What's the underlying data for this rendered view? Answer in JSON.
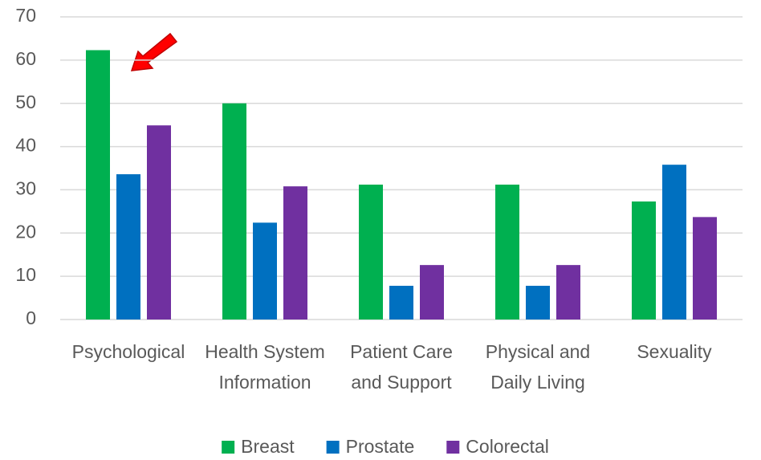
{
  "chart_data": {
    "type": "bar",
    "categories": [
      "Psychological",
      "Health System Information",
      "Patient Care and Support",
      "Physical and Daily Living",
      "Sexuality"
    ],
    "series": [
      {
        "name": "Breast",
        "color": "#00b050",
        "values": [
          62.3,
          50,
          31.2,
          31.2,
          27.3
        ]
      },
      {
        "name": "Prostate",
        "color": "#0070c0",
        "values": [
          33.6,
          22.4,
          7.8,
          7.8,
          35.8
        ]
      },
      {
        "name": "Colorectal",
        "color": "#7030a0",
        "values": [
          44.9,
          30.8,
          12.6,
          12.6,
          23.7
        ]
      }
    ],
    "ylim": [
      0,
      70
    ],
    "yticks": [
      0,
      10,
      20,
      30,
      40,
      50,
      60,
      70
    ],
    "grid": true,
    "legend": "bottom"
  }
}
